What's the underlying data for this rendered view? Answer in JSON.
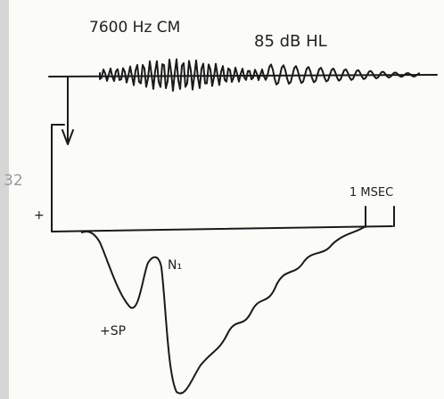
{
  "labels": {
    "stimulus": "7600 Hz CM",
    "level": "85 dB HL",
    "scale": "32",
    "polarity": "+",
    "time": "1 MSEC",
    "peak": "N₁",
    "summating": "+SP"
  }
}
